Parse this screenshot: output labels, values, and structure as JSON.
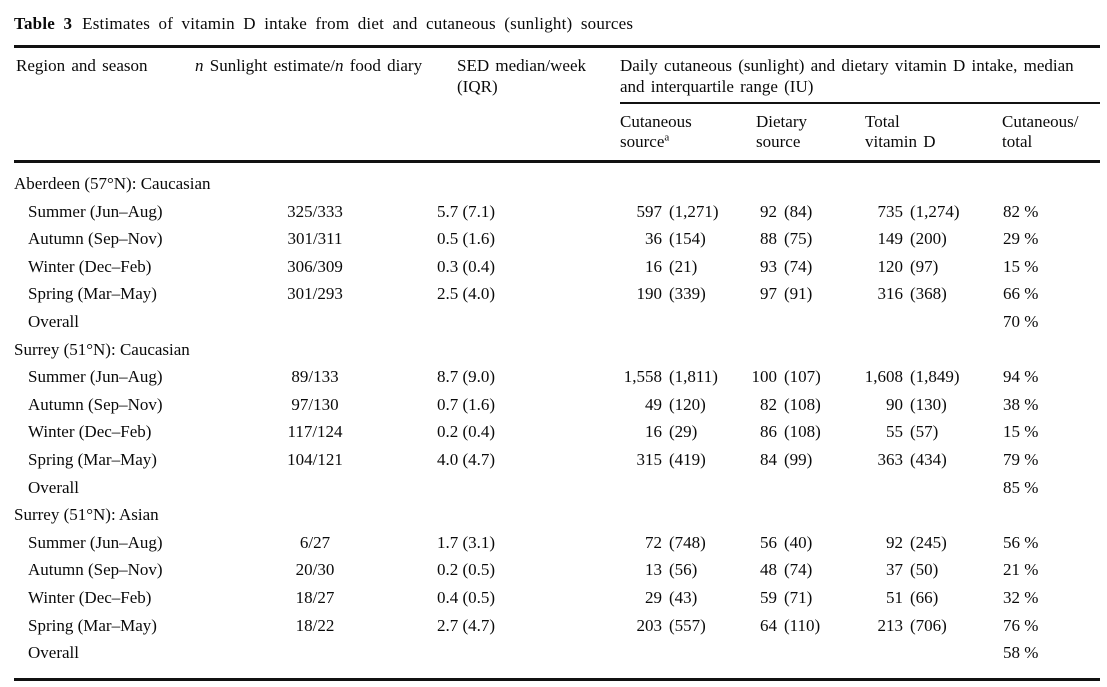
{
  "colors": {
    "text": "#0a0a0a",
    "background": "#ffffff",
    "rule": "#111111"
  },
  "title": {
    "label": "Table 3",
    "text": "Estimates of vitamin D intake from diet and cutaneous (sunlight) sources"
  },
  "header": {
    "region": "Region and season",
    "n_col": {
      "n1": "n",
      "t1": " Sunlight estimate/",
      "n2": "n",
      "t2": " food diary"
    },
    "sed": {
      "line1": "SED median/week",
      "line2": "(IQR)"
    },
    "group": {
      "line1": "Daily cutaneous (sunlight) and dietary vitamin D intake, median",
      "line2": "and interquartile range (IU)"
    },
    "sub": [
      {
        "line1": "Cutaneous",
        "line2": "source",
        "sup": "a"
      },
      {
        "line1": "Dietary",
        "line2": "source"
      },
      {
        "line1": "Total",
        "line2": "vitamin D"
      },
      {
        "line1": "Cutaneous/",
        "line2": "total"
      }
    ]
  },
  "table": {
    "sections": [
      {
        "label": "Aberdeen (57°N): Caucasian",
        "rows": [
          {
            "season": "Summer (Jun–Aug)",
            "n": "325/333",
            "sed": "5.7 (7.1)",
            "cutaneous": {
              "median": "597",
              "iqr": "(1,271)"
            },
            "dietary": {
              "median": "92",
              "iqr": "(84)"
            },
            "total": {
              "median": "735",
              "iqr": "(1,274)"
            },
            "cutaneous_total": "82 %"
          },
          {
            "season": "Autumn (Sep–Nov)",
            "n": "301/311",
            "sed": "0.5 (1.6)",
            "cutaneous": {
              "median": "36",
              "iqr": "(154)"
            },
            "dietary": {
              "median": "88",
              "iqr": "(75)"
            },
            "total": {
              "median": "149",
              "iqr": "(200)"
            },
            "cutaneous_total": "29 %"
          },
          {
            "season": "Winter (Dec–Feb)",
            "n": "306/309",
            "sed": "0.3 (0.4)",
            "cutaneous": {
              "median": "16",
              "iqr": "(21)"
            },
            "dietary": {
              "median": "93",
              "iqr": "(74)"
            },
            "total": {
              "median": "120",
              "iqr": "(97)"
            },
            "cutaneous_total": "15 %"
          },
          {
            "season": "Spring (Mar–May)",
            "n": "301/293",
            "sed": "2.5 (4.0)",
            "cutaneous": {
              "median": "190",
              "iqr": "(339)"
            },
            "dietary": {
              "median": "97",
              "iqr": "(91)"
            },
            "total": {
              "median": "316",
              "iqr": "(368)"
            },
            "cutaneous_total": "66 %"
          },
          {
            "season": "Overall",
            "cutaneous_total": "70 %"
          }
        ]
      },
      {
        "label": "Surrey (51°N): Caucasian",
        "rows": [
          {
            "season": "Summer (Jun–Aug)",
            "n": "89/133",
            "sed": "8.7 (9.0)",
            "cutaneous": {
              "median": "1,558",
              "iqr": "(1,811)"
            },
            "dietary": {
              "median": "100",
              "iqr": "(107)"
            },
            "total": {
              "median": "1,608",
              "iqr": "(1,849)"
            },
            "cutaneous_total": "94 %"
          },
          {
            "season": "Autumn (Sep–Nov)",
            "n": "97/130",
            "sed": "0.7 (1.6)",
            "cutaneous": {
              "median": "49",
              "iqr": "(120)"
            },
            "dietary": {
              "median": "82",
              "iqr": "(108)"
            },
            "total": {
              "median": "90",
              "iqr": "(130)"
            },
            "cutaneous_total": "38 %"
          },
          {
            "season": "Winter (Dec–Feb)",
            "n": "117/124",
            "sed": "0.2 (0.4)",
            "cutaneous": {
              "median": "16",
              "iqr": "(29)"
            },
            "dietary": {
              "median": "86",
              "iqr": "(108)"
            },
            "total": {
              "median": "55",
              "iqr": "(57)"
            },
            "cutaneous_total": "15 %"
          },
          {
            "season": "Spring (Mar–May)",
            "n": "104/121",
            "sed": "4.0 (4.7)",
            "cutaneous": {
              "median": "315",
              "iqr": "(419)"
            },
            "dietary": {
              "median": "84",
              "iqr": "(99)"
            },
            "total": {
              "median": "363",
              "iqr": "(434)"
            },
            "cutaneous_total": "79 %"
          },
          {
            "season": "Overall",
            "cutaneous_total": "85 %"
          }
        ]
      },
      {
        "label": "Surrey (51°N): Asian",
        "rows": [
          {
            "season": "Summer (Jun–Aug)",
            "n": "6/27",
            "sed": "1.7 (3.1)",
            "cutaneous": {
              "median": "72",
              "iqr": "(748)"
            },
            "dietary": {
              "median": "56",
              "iqr": "(40)"
            },
            "total": {
              "median": "92",
              "iqr": "(245)"
            },
            "cutaneous_total": "56 %"
          },
          {
            "season": "Autumn (Sep–Nov)",
            "n": "20/30",
            "sed": "0.2 (0.5)",
            "cutaneous": {
              "median": "13",
              "iqr": "(56)"
            },
            "dietary": {
              "median": "48",
              "iqr": "(74)"
            },
            "total": {
              "median": "37",
              "iqr": "(50)"
            },
            "cutaneous_total": "21 %"
          },
          {
            "season": "Winter (Dec–Feb)",
            "n": "18/27",
            "sed": "0.4 (0.5)",
            "cutaneous": {
              "median": "29",
              "iqr": "(43)"
            },
            "dietary": {
              "median": "59",
              "iqr": "(71)"
            },
            "total": {
              "median": "51",
              "iqr": "(66)"
            },
            "cutaneous_total": "32 %"
          },
          {
            "season": "Spring (Mar–May)",
            "n": "18/22",
            "sed": "2.7 (4.7)",
            "cutaneous": {
              "median": "203",
              "iqr": "(557)"
            },
            "dietary": {
              "median": "64",
              "iqr": "(110)"
            },
            "total": {
              "median": "213",
              "iqr": "(706)"
            },
            "cutaneous_total": "76 %"
          },
          {
            "season": "Overall",
            "cutaneous_total": "58 %"
          }
        ]
      }
    ]
  }
}
